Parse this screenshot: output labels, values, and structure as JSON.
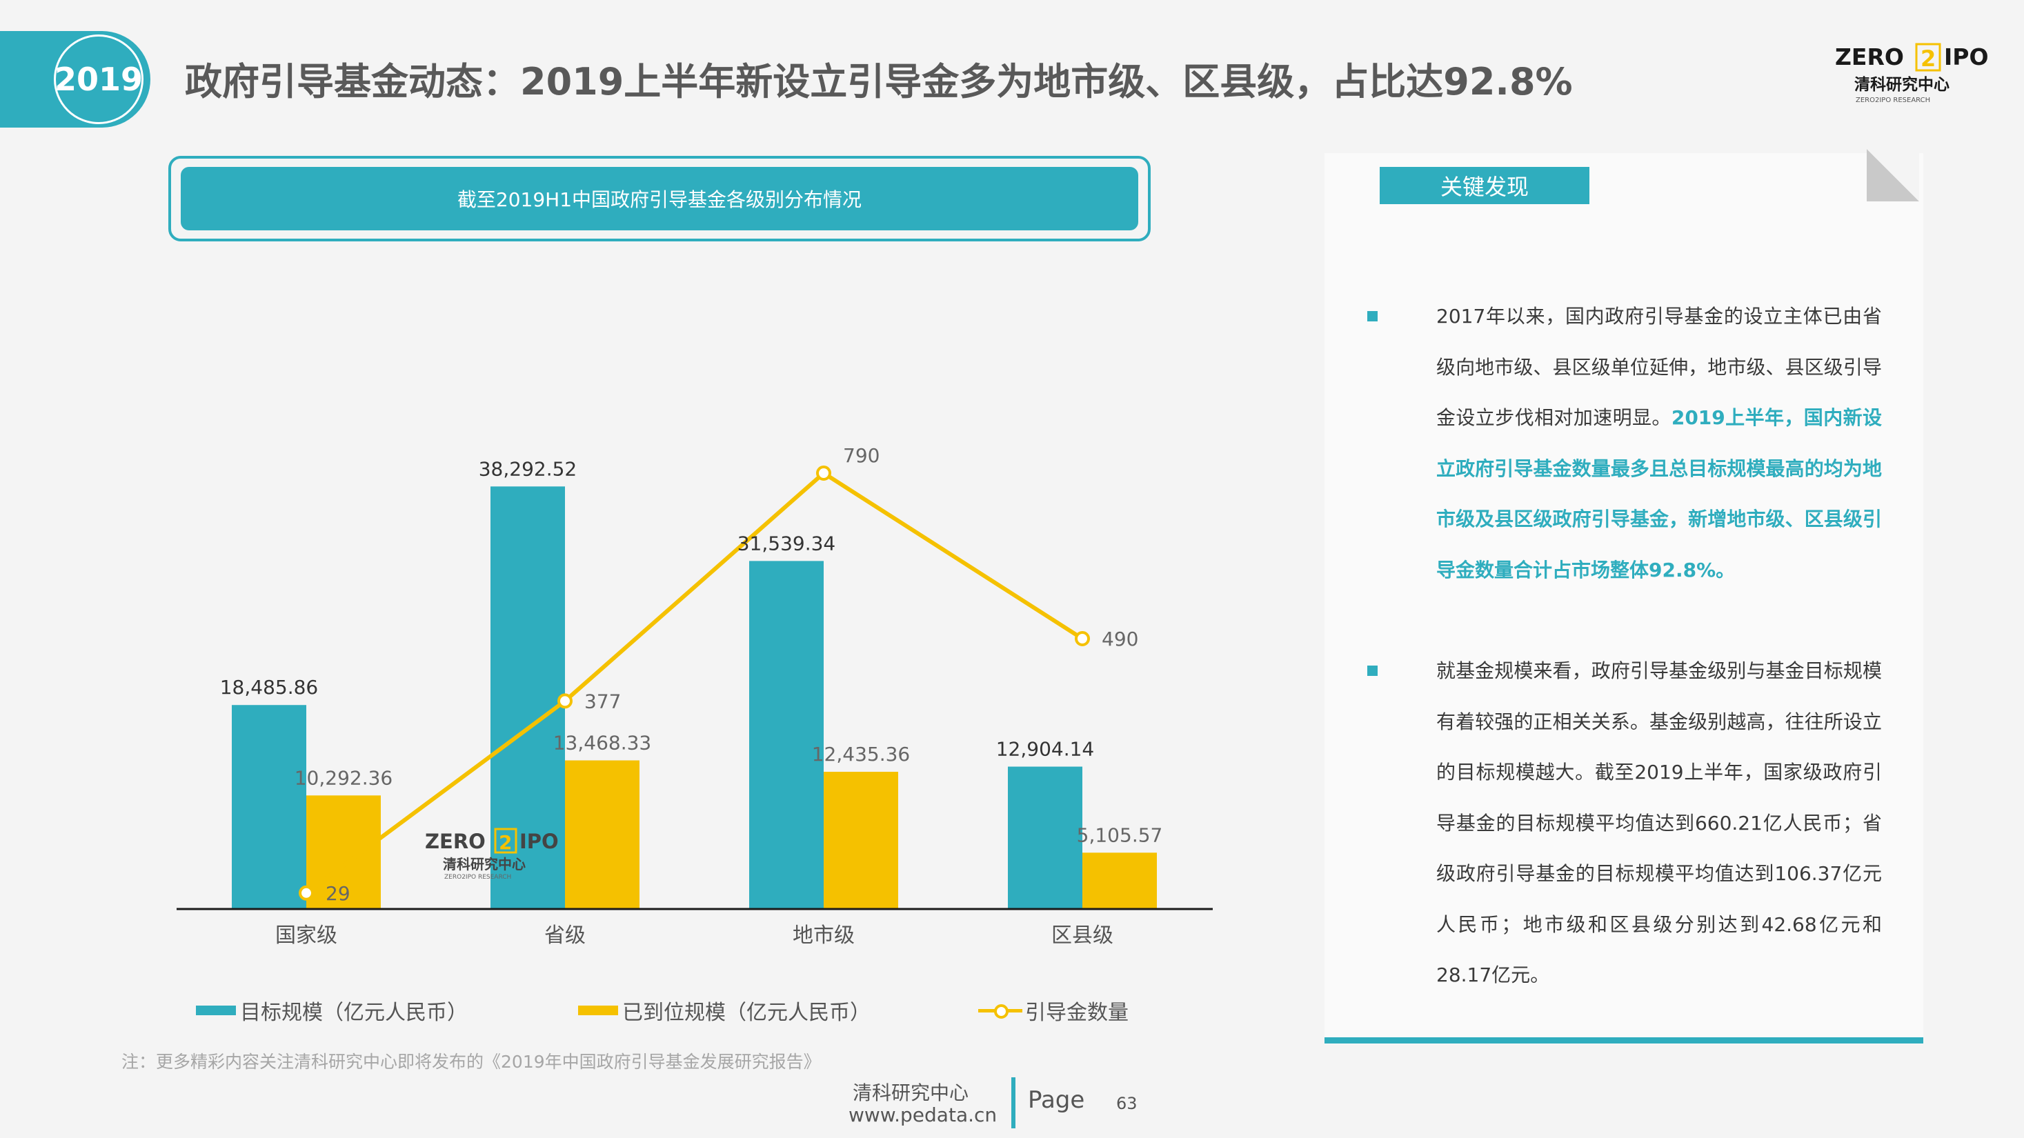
{
  "header": {
    "year": "2019",
    "title": "政府引导基金动态：2019上半年新设立引导金多为地市级、区县级，占比达92.8%"
  },
  "logo": {
    "zero": "ZERO",
    "two": "2",
    "ipo": "IPO",
    "cn": "清科研究中心",
    "en": "ZERO2IPO RESEARCH"
  },
  "chart_header": "截至2019H1中国政府引导基金各级别分布情况",
  "chart_data": {
    "type": "bar",
    "categories": [
      "国家级",
      "省级",
      "地市级",
      "区县级"
    ],
    "series": [
      {
        "name": "目标规模（亿元人民币）",
        "type": "bar",
        "color": "#2fadbe",
        "values": [
          18485.86,
          38292.52,
          31539.34,
          12904.14
        ],
        "labels": [
          "18,485.86",
          "38,292.52",
          "31,539.34",
          "12,904.14"
        ]
      },
      {
        "name": "已到位规模（亿元人民币）",
        "type": "bar",
        "color": "#f5c100",
        "values": [
          10292.36,
          13468.33,
          12435.36,
          5105.57
        ],
        "labels": [
          "10,292.36",
          "13,468.33",
          "12,435.36",
          "5,105.57"
        ]
      },
      {
        "name": "引导金数量",
        "type": "line",
        "color": "#f5c100",
        "values": [
          29,
          377,
          790,
          490
        ],
        "labels": [
          "29",
          "377",
          "790",
          "490"
        ]
      }
    ],
    "ylim": [
      0,
      45000
    ],
    "y2lim": [
      0,
      900
    ],
    "grid": false,
    "legend": "bottom"
  },
  "panel": {
    "title": "关键发现",
    "p1_a": "2017年以来，国内政府引导基金的设立主体已由省级向地市级、县区级单位延伸，地市级、县区级引导金设立步伐相对加速明显。",
    "p1_b": "2019上半年，国内新设立政府引导基金数量最多且总目标规模最高的均为地市级及县区级政府引导基金，新增地市级、区县级引导金数量合计占市场整体92.8%。",
    "p2": "就基金规模来看，政府引导基金级别与基金目标规模有着较强的正相关关系。基金级别越高，往往所设立的目标规模越大。截至2019上半年，国家级政府引导基金的目标规模平均值达到660.21亿人民币；省级政府引导基金的目标规模平均值达到106.37亿元人民币；地市级和区县级分别达到42.68亿元和28.17亿元。"
  },
  "note": "注：更多精彩内容关注清科研究中心即将发布的《2019年中国政府引导基金发展研究报告》",
  "footer": {
    "org": "清科研究中心",
    "url": "www.pedata.cn",
    "page_label": "Page",
    "page_number": "63"
  },
  "colors": {
    "accent": "#2fadbe",
    "secondary": "#f5c100",
    "title": "#595959"
  }
}
